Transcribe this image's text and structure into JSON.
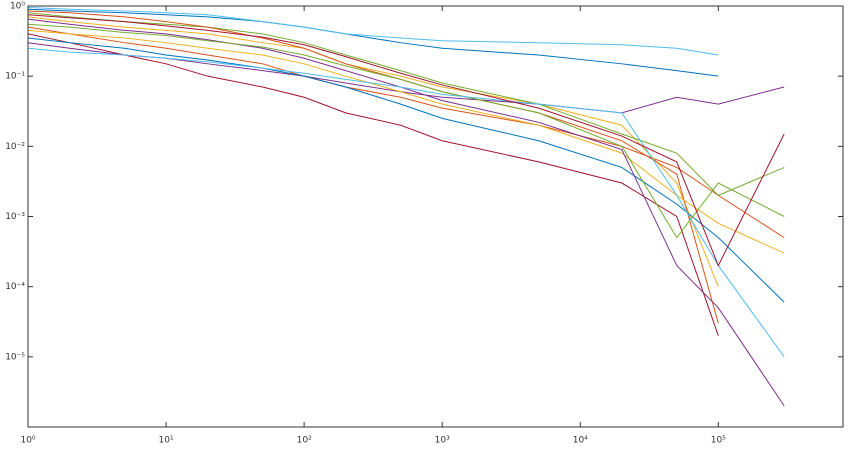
{
  "chart_data": {
    "type": "line",
    "xscale": "log",
    "yscale": "log",
    "grid": false,
    "xlim": [
      1,
      800000
    ],
    "ylim": [
      1e-06,
      1
    ],
    "xticks": [
      {
        "value": 1,
        "label": "10⁰"
      },
      {
        "value": 10,
        "label": "10¹"
      },
      {
        "value": 100,
        "label": "10²"
      },
      {
        "value": 1000,
        "label": "10³"
      },
      {
        "value": 10000,
        "label": "10⁴"
      },
      {
        "value": 100000,
        "label": "10⁵"
      }
    ],
    "yticks": [
      {
        "value": 1e-05,
        "label": "10⁻⁵"
      },
      {
        "value": 0.0001,
        "label": "10⁻⁴"
      },
      {
        "value": 0.001,
        "label": "10⁻³"
      },
      {
        "value": 0.01,
        "label": "10⁻²"
      },
      {
        "value": 0.1,
        "label": "10⁻¹"
      },
      {
        "value": 1,
        "label": "10⁰"
      }
    ],
    "x": [
      1,
      2,
      5,
      10,
      20,
      50,
      100,
      200,
      500,
      1000,
      5000,
      20000,
      50000,
      100000,
      300000
    ],
    "series": [
      {
        "color": "#0072BD",
        "values": [
          0.9,
          0.85,
          0.8,
          0.75,
          0.7,
          0.6,
          0.5,
          0.4,
          0.3,
          0.25,
          0.2,
          0.15,
          0.12,
          0.1,
          null
        ]
      },
      {
        "color": "#D95319",
        "values": [
          0.5,
          0.4,
          0.3,
          0.25,
          0.2,
          0.15,
          0.1,
          0.07,
          0.05,
          0.035,
          0.02,
          0.01,
          0.005,
          0.002,
          0.0005
        ]
      },
      {
        "color": "#EDB120",
        "values": [
          0.7,
          0.6,
          0.5,
          0.45,
          0.4,
          0.3,
          0.25,
          0.15,
          0.1,
          0.07,
          0.04,
          0.02,
          0.003,
          0.0001,
          null
        ]
      },
      {
        "color": "#7E2F8E",
        "values": [
          0.3,
          0.25,
          0.2,
          0.18,
          0.15,
          0.12,
          0.1,
          0.08,
          0.06,
          0.05,
          0.04,
          0.03,
          0.05,
          0.04,
          0.07
        ]
      },
      {
        "color": "#77AC30",
        "values": [
          0.8,
          0.7,
          0.6,
          0.55,
          0.5,
          0.4,
          0.3,
          0.2,
          0.12,
          0.08,
          0.04,
          0.015,
          0.008,
          0.002,
          0.005
        ]
      },
      {
        "color": "#4DBEEE",
        "values": [
          0.95,
          0.9,
          0.85,
          0.8,
          0.75,
          0.6,
          0.5,
          0.4,
          0.35,
          0.32,
          0.3,
          0.28,
          0.25,
          0.2,
          null
        ]
      },
      {
        "color": "#A2142F",
        "values": [
          0.4,
          0.3,
          0.2,
          0.15,
          0.1,
          0.07,
          0.05,
          0.03,
          0.02,
          0.012,
          0.006,
          0.003,
          0.001,
          2e-05,
          null
        ]
      },
      {
        "color": "#0072BD",
        "values": [
          0.35,
          0.3,
          0.25,
          0.2,
          0.17,
          0.13,
          0.1,
          0.07,
          0.04,
          0.025,
          0.012,
          0.005,
          0.0015,
          0.0005,
          6e-05
        ]
      },
      {
        "color": "#D95319",
        "values": [
          0.85,
          0.8,
          0.7,
          0.6,
          0.5,
          0.35,
          0.25,
          0.15,
          0.09,
          0.06,
          0.03,
          0.012,
          0.004,
          3e-05,
          null
        ]
      },
      {
        "color": "#EDB120",
        "values": [
          0.45,
          0.4,
          0.35,
          0.3,
          0.25,
          0.2,
          0.15,
          0.1,
          0.06,
          0.04,
          0.02,
          0.008,
          0.002,
          0.0008,
          0.0003
        ]
      },
      {
        "color": "#7E2F8E",
        "values": [
          0.65,
          0.55,
          0.45,
          0.4,
          0.33,
          0.25,
          0.18,
          0.12,
          0.07,
          0.045,
          0.022,
          0.009,
          0.0002,
          5e-05,
          2e-06
        ]
      },
      {
        "color": "#77AC30",
        "values": [
          0.55,
          0.5,
          0.42,
          0.38,
          0.32,
          0.26,
          0.2,
          0.14,
          0.09,
          0.06,
          0.03,
          0.01,
          0.0005,
          0.003,
          0.001
        ]
      },
      {
        "color": "#4DBEEE",
        "values": [
          0.25,
          0.22,
          0.2,
          0.18,
          0.16,
          0.13,
          0.11,
          0.09,
          0.07,
          0.055,
          0.04,
          0.03,
          0.002,
          0.0002,
          1e-05
        ]
      },
      {
        "color": "#A2142F",
        "values": [
          0.75,
          0.68,
          0.6,
          0.52,
          0.45,
          0.36,
          0.28,
          0.19,
          0.11,
          0.075,
          0.035,
          0.014,
          0.006,
          0.0002,
          0.015
        ]
      }
    ]
  }
}
